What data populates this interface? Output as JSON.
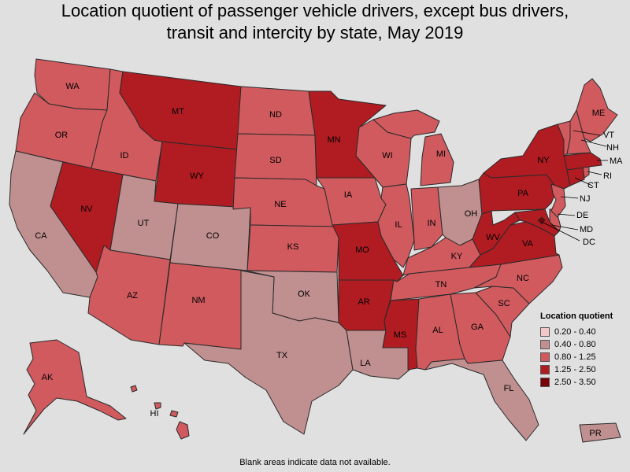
{
  "title_line1": "Location quotient of passenger vehicle drivers, except bus drivers,",
  "title_line2": "transit and intercity by state, May 2019",
  "legend": {
    "title": "Location quotient",
    "items": [
      {
        "label": "0.20 - 0.40",
        "color": "#f2c7c9"
      },
      {
        "label": "0.40 - 0.80",
        "color": "#c09090"
      },
      {
        "label": "0.80 - 1.25",
        "color": "#d05a5e"
      },
      {
        "label": "1.25 - 2.50",
        "color": "#b01c22"
      },
      {
        "label": "2.50 - 3.50",
        "color": "#7a0008"
      }
    ]
  },
  "footnote": "Blank areas indicate data not available.",
  "states": {
    "WA": "0.80 - 1.25",
    "OR": "0.80 - 1.25",
    "CA": "0.40 - 0.80",
    "NV": "1.25 - 2.50",
    "ID": "0.80 - 1.25",
    "MT": "1.25 - 2.50",
    "WY": "1.25 - 2.50",
    "UT": "0.40 - 0.80",
    "CO": "0.40 - 0.80",
    "AZ": "0.80 - 1.25",
    "NM": "0.80 - 1.25",
    "ND": "0.80 - 1.25",
    "SD": "0.80 - 1.25",
    "NE": "0.80 - 1.25",
    "KS": "0.80 - 1.25",
    "OK": "0.40 - 0.80",
    "TX": "0.40 - 0.80",
    "MN": "1.25 - 2.50",
    "IA": "0.80 - 1.25",
    "MO": "1.25 - 2.50",
    "AR": "1.25 - 2.50",
    "LA": "0.40 - 0.80",
    "WI": "0.80 - 1.25",
    "IL": "0.80 - 1.25",
    "MS": "1.25 - 2.50",
    "MI": "0.80 - 1.25",
    "IN": "0.80 - 1.25",
    "OH": "0.40 - 0.80",
    "KY": "0.80 - 1.25",
    "TN": "0.80 - 1.25",
    "AL": "0.80 - 1.25",
    "GA": "0.80 - 1.25",
    "FL": "0.40 - 0.80",
    "SC": "0.80 - 1.25",
    "NC": "0.80 - 1.25",
    "VA": "1.25 - 2.50",
    "WV": "1.25 - 2.50",
    "PA": "1.25 - 2.50",
    "NY": "1.25 - 2.50",
    "NJ": "0.80 - 1.25",
    "DE": "0.80 - 1.25",
    "MD": "1.25 - 2.50",
    "DC": "2.50 - 3.50",
    "CT": "1.25 - 2.50",
    "RI": "0.80 - 1.25",
    "MA": "1.25 - 2.50",
    "VT": "0.80 - 1.25",
    "NH": "0.80 - 1.25",
    "ME": "0.80 - 1.25",
    "AK": "0.80 - 1.25",
    "HI": "0.80 - 1.25",
    "PR": "0.40 - 0.80"
  }
}
